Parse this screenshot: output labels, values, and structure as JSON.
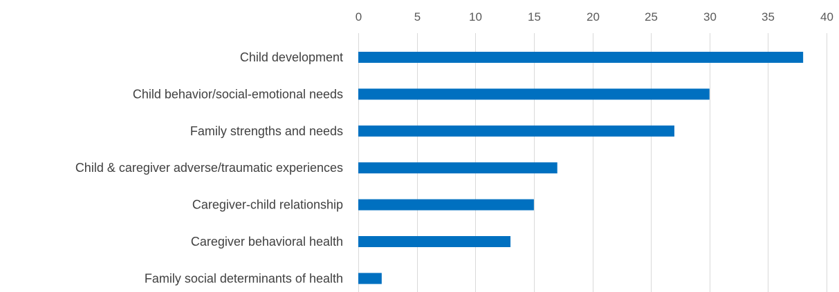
{
  "chart_data": {
    "type": "bar",
    "orientation": "horizontal",
    "title": "",
    "xlabel": "",
    "ylabel": "",
    "categories": [
      "Child development",
      "Child behavior/social-emotional needs",
      "Family strengths and needs",
      "Child & caregiver adverse/traumatic experiences",
      "Caregiver-child relationship",
      "Caregiver behavioral health",
      "Family social determinants of health"
    ],
    "values": [
      38,
      30,
      27,
      17,
      15,
      13,
      2
    ],
    "xlim": [
      0,
      40
    ],
    "x_ticks": [
      0,
      5,
      10,
      15,
      20,
      25,
      30,
      35,
      40
    ],
    "x_axis_position": "top",
    "grid": true,
    "legend": "none",
    "bar_color": "#0070C0",
    "grid_color": "#d9d9d9"
  }
}
